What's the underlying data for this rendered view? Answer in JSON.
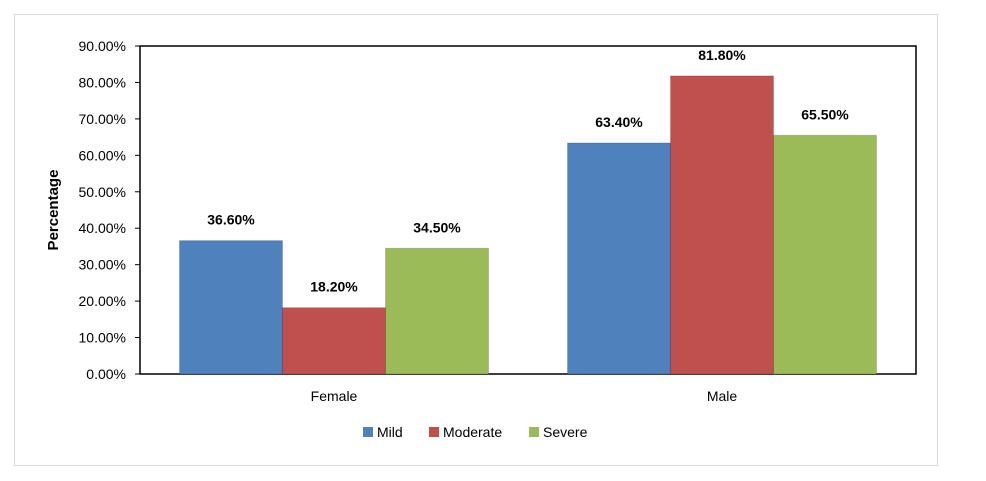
{
  "chart_data": {
    "type": "bar",
    "categories": [
      "Female",
      "Male"
    ],
    "series": [
      {
        "name": "Mild",
        "values": [
          36.6,
          63.4
        ],
        "color": "#4f81bd"
      },
      {
        "name": "Moderate",
        "values": [
          18.2,
          81.8
        ],
        "color": "#c0504d"
      },
      {
        "name": "Severe",
        "values": [
          34.5,
          65.5
        ],
        "color": "#9bbb59"
      }
    ],
    "data_labels": [
      [
        "36.60%",
        "63.40%"
      ],
      [
        "18.20%",
        "81.80%"
      ],
      [
        "34.50%",
        "65.50%"
      ]
    ],
    "yticks": [
      "0.00%",
      "10.00%",
      "20.00%",
      "30.00%",
      "40.00%",
      "50.00%",
      "60.00%",
      "70.00%",
      "80.00%",
      "90.00%"
    ],
    "ylim": [
      0,
      90
    ],
    "xlabel": "",
    "ylabel": "Percentage",
    "legend_position": "bottom",
    "grid": false
  }
}
